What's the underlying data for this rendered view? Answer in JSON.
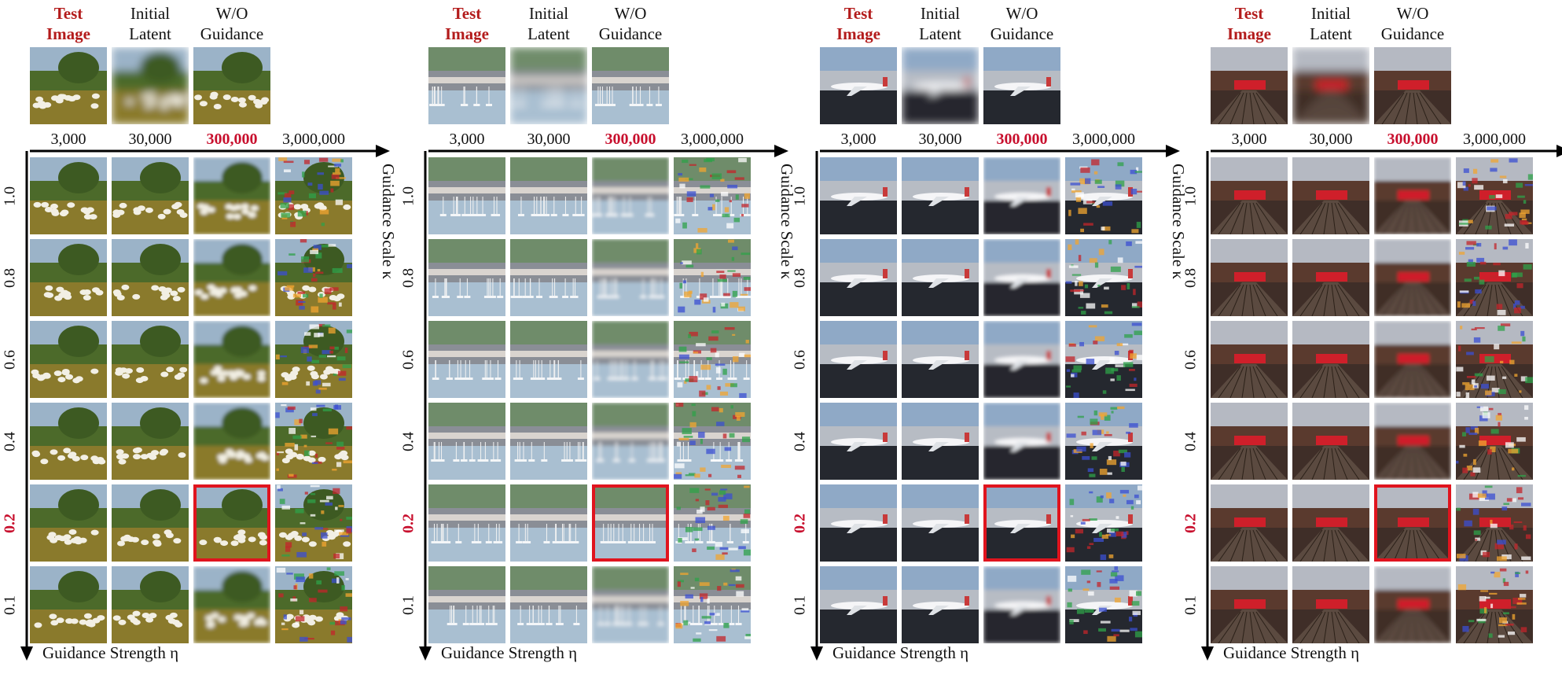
{
  "panels": [
    {
      "id": "sheep",
      "headers": [
        "Test\nImage",
        "Initial\nLatent",
        "W/O\nGuidance"
      ],
      "highlight_header": "Test Image",
      "col_labels": [
        "3,000",
        "30,000",
        "300,000",
        "3,000,000"
      ],
      "highlight_col": "300,000",
      "row_labels": [
        "1.0",
        "0.8",
        "0.6",
        "0.4",
        "0.2",
        "0.1"
      ],
      "highlight_row": "0.2",
      "x_axis_title": "Guidance Scale κ",
      "y_axis_title": "Guidance Strength η",
      "colors": {
        "sky": "#9bb3c8",
        "mid": "#4c6a2a",
        "ground": "#8a7a2c",
        "obj": "#f2efe4"
      }
    },
    {
      "id": "harbor",
      "headers": [
        "Test\nImage",
        "Initial\nLatent",
        "W/O\nGuidance"
      ],
      "highlight_header": "Test Image",
      "col_labels": [
        "3,000",
        "30,000",
        "300,000",
        "3,000,000"
      ],
      "highlight_col": "300,000",
      "row_labels": [
        "1.0",
        "0.8",
        "0.6",
        "0.4",
        "0.2",
        "0.1"
      ],
      "highlight_row": "0.2",
      "x_axis_title": "Guidance Scale κ",
      "y_axis_title": "Guidance Strength η",
      "colors": {
        "sky": "#6f8c6a",
        "mid": "#8a8e96",
        "ground": "#a9bfd1",
        "obj": "#f4f6f8"
      }
    },
    {
      "id": "airplane",
      "headers": [
        "Test\nImage",
        "Initial\nLatent",
        "W/O\nGuidance"
      ],
      "highlight_header": "Test Image",
      "col_labels": [
        "3,000",
        "30,000",
        "300,000",
        "3,000,000"
      ],
      "highlight_col": "300,000",
      "row_labels": [
        "1.0",
        "0.8",
        "0.6",
        "0.4",
        "0.2",
        "0.1"
      ],
      "highlight_row": "0.2",
      "x_axis_title": "Guidance Scale κ",
      "y_axis_title": "Guidance Strength η",
      "colors": {
        "sky": "#8fa9c6",
        "mid": "#b7bcc4",
        "ground": "#25282f",
        "obj": "#f5f5f7"
      }
    },
    {
      "id": "train",
      "headers": [
        "Test\nImage",
        "Initial\nLatent",
        "W/O\nGuidance"
      ],
      "highlight_header": "Test Image",
      "col_labels": [
        "3,000",
        "30,000",
        "300,000",
        "3,000,000"
      ],
      "highlight_col": "300,000",
      "row_labels": [
        "1.0",
        "0.8",
        "0.6",
        "0.4",
        "0.2",
        "0.1"
      ],
      "highlight_row": "0.2",
      "x_axis_title": "Guidance Scale κ",
      "y_axis_title": "Guidance Strength η",
      "colors": {
        "sky": "#b5b9c2",
        "mid": "#5a3a2e",
        "ground": "#3f2e28",
        "obj": "#cf1f2a"
      }
    }
  ]
}
